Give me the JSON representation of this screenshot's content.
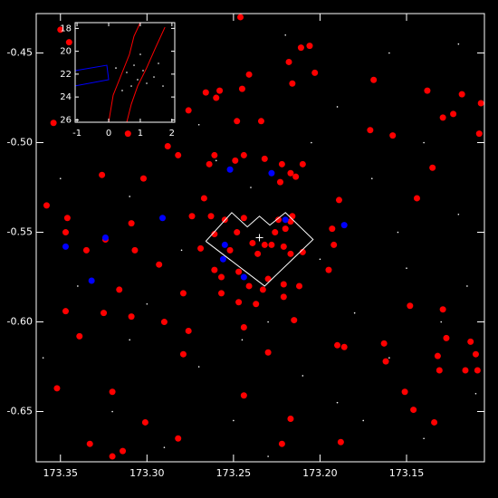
{
  "chart_data": [
    {
      "type": "scatter",
      "xlim": [
        173.364,
        173.105
      ],
      "ylim": [
        -0.678,
        -0.428
      ],
      "xticks": [
        173.35,
        {
          "value": 173.3,
          "label": "173.30"
        },
        173.25,
        {
          "value": 173.2,
          "label": "173.20"
        },
        173.15
      ],
      "yticks": [
        -0.45,
        {
          "value": -0.5,
          "label": "-0.50"
        },
        -0.55,
        {
          "value": -0.6,
          "label": "-0.60"
        },
        -0.65
      ],
      "grid": false,
      "series": [
        {
          "color": "#ffffff",
          "marker": "point",
          "x": [
            173.33,
            173.29,
            173.22,
            173.16,
            173.12,
            173.27,
            173.19,
            173.14,
            173.35,
            173.31,
            173.24,
            173.17,
            173.12,
            173.28,
            173.2,
            173.15,
            173.34,
            173.3,
            173.23,
            173.18,
            173.13,
            173.36,
            173.27,
            173.21,
            173.16,
            173.11,
            173.32,
            173.25,
            173.19,
            173.14,
            173.29,
            173.23,
            173.34,
            173.26,
            173.205,
            173.155,
            173.31,
            173.245,
            173.175,
            173.115
          ],
          "values": [
            -0.44,
            -0.46,
            -0.44,
            -0.45,
            -0.445,
            -0.49,
            -0.48,
            -0.5,
            -0.52,
            -0.53,
            -0.525,
            -0.52,
            -0.54,
            -0.56,
            -0.565,
            -0.57,
            -0.58,
            -0.59,
            -0.6,
            -0.595,
            -0.6,
            -0.62,
            -0.625,
            -0.63,
            -0.62,
            -0.64,
            -0.65,
            -0.655,
            -0.645,
            -0.665,
            -0.67,
            -0.675,
            -0.46,
            -0.51,
            -0.5,
            -0.55,
            -0.61,
            -0.61,
            -0.655,
            -0.58
          ]
        },
        {
          "color": "#ff0000",
          "marker": "circle",
          "x": [
            173.246,
            173.211,
            173.206,
            173.218,
            173.203,
            173.241,
            173.266,
            173.258,
            173.26,
            173.245,
            173.216,
            173.169,
            173.138,
            173.118,
            173.107,
            173.276,
            173.129,
            173.123,
            173.108,
            173.171,
            173.158,
            173.248,
            173.234,
            173.311,
            173.288,
            173.282,
            173.302,
            173.326,
            173.264,
            173.261,
            173.244,
            173.232,
            173.249,
            173.222,
            173.21,
            173.217,
            173.135,
            173.223,
            173.214,
            173.144,
            173.267,
            173.189,
            173.358,
            173.346,
            173.309,
            173.274,
            173.263,
            173.255,
            173.244,
            173.224,
            173.216,
            173.226,
            173.248,
            173.22,
            173.217,
            173.261,
            173.347,
            173.324,
            173.193,
            173.192,
            173.307,
            173.335,
            173.269,
            173.239,
            173.232,
            173.228,
            173.221,
            173.252,
            173.217,
            173.21,
            173.236,
            173.293,
            173.195,
            173.261,
            173.247,
            173.23,
            173.221,
            173.212,
            173.257,
            173.233,
            173.257,
            173.279,
            173.241,
            173.316,
            173.237,
            173.221,
            173.247,
            173.347,
            173.325,
            173.309,
            173.148,
            173.129,
            173.29,
            173.215,
            173.244,
            173.339,
            173.276,
            173.127,
            173.113,
            173.19,
            173.186,
            173.23,
            173.163,
            173.279,
            173.132,
            173.11,
            173.162,
            173.116,
            173.131,
            173.109,
            173.352,
            173.244,
            173.32,
            173.151,
            173.146,
            173.217,
            173.301,
            173.134,
            173.188,
            173.282,
            173.333,
            173.222,
            173.314,
            173.32,
            173.35,
            173.354,
            173.345
          ],
          "values": [
            -0.43,
            -0.447,
            -0.446,
            -0.455,
            -0.461,
            -0.462,
            -0.472,
            -0.471,
            -0.475,
            -0.47,
            -0.467,
            -0.465,
            -0.471,
            -0.473,
            -0.478,
            -0.482,
            -0.486,
            -0.484,
            -0.495,
            -0.493,
            -0.496,
            -0.488,
            -0.488,
            -0.495,
            -0.502,
            -0.507,
            -0.52,
            -0.518,
            -0.512,
            -0.507,
            -0.507,
            -0.509,
            -0.51,
            -0.512,
            -0.512,
            -0.517,
            -0.514,
            -0.522,
            -0.519,
            -0.531,
            -0.531,
            -0.532,
            -0.535,
            -0.542,
            -0.545,
            -0.541,
            -0.541,
            -0.543,
            -0.542,
            -0.543,
            -0.541,
            -0.55,
            -0.55,
            -0.548,
            -0.544,
            -0.551,
            -0.55,
            -0.554,
            -0.548,
            -0.557,
            -0.56,
            -0.56,
            -0.559,
            -0.556,
            -0.557,
            -0.557,
            -0.558,
            -0.56,
            -0.562,
            -0.561,
            -0.562,
            -0.568,
            -0.571,
            -0.571,
            -0.572,
            -0.576,
            -0.579,
            -0.58,
            -0.575,
            -0.582,
            -0.584,
            -0.584,
            -0.58,
            -0.582,
            -0.59,
            -0.586,
            -0.589,
            -0.594,
            -0.595,
            -0.597,
            -0.591,
            -0.593,
            -0.6,
            -0.599,
            -0.603,
            -0.608,
            -0.605,
            -0.609,
            -0.611,
            -0.613,
            -0.614,
            -0.617,
            -0.612,
            -0.618,
            -0.619,
            -0.618,
            -0.622,
            -0.627,
            -0.627,
            -0.627,
            -0.637,
            -0.641,
            -0.639,
            -0.639,
            -0.649,
            -0.654,
            -0.656,
            -0.656,
            -0.667,
            -0.665,
            -0.668,
            -0.668,
            -0.672,
            -0.675,
            -0.437,
            -0.489,
            -0.444
          ]
        },
        {
          "color": "#0000ff",
          "marker": "circle",
          "x": [
            173.252,
            173.228,
            173.291,
            173.22,
            173.186,
            173.324,
            173.347,
            173.255,
            173.256,
            173.332,
            173.244
          ],
          "values": [
            -0.515,
            -0.517,
            -0.542,
            -0.543,
            -0.546,
            -0.553,
            -0.558,
            -0.557,
            -0.565,
            -0.577,
            -0.575
          ]
        },
        {
          "color": "#ffffff",
          "marker": "none",
          "line": true,
          "x": [
            173.266,
            173.251,
            173.242,
            173.235,
            173.229,
            173.22,
            173.204,
            173.232,
            173.266
          ],
          "values": [
            -0.555,
            -0.539,
            -0.547,
            -0.541,
            -0.546,
            -0.539,
            -0.554,
            -0.58,
            -0.555
          ]
        },
        {
          "color": "#ffffff",
          "marker": "plus",
          "x": [
            173.235
          ],
          "values": [
            -0.553
          ]
        }
      ]
    },
    {
      "type": "scatter",
      "xlim": [
        -1.06,
        2.09
      ],
      "ylim": [
        26.2,
        17.5
      ],
      "xticks": [
        -1,
        0,
        1,
        2
      ],
      "yticks": [
        18,
        20,
        22,
        24,
        26
      ],
      "grid": false,
      "series": [
        {
          "color": "#ffffff",
          "marker": "point",
          "x": [
            0.572,
            0.802,
            0.916,
            1.088,
            0.716,
            1.203,
            0.429,
            1.432,
            1.575,
            1.718,
            0.229,
            1.002
          ],
          "values": [
            21.85,
            21.22,
            22.48,
            21.69,
            23.04,
            22.8,
            23.43,
            22.25,
            21.06,
            23.04,
            21.46,
            20.27
          ]
        },
        {
          "color": "#ff0000",
          "marker": "none",
          "line": true,
          "x": [
            0.0,
            0.143,
            0.429,
            0.658,
            0.8,
            1.0
          ],
          "values": [
            26.2,
            23.83,
            21.85,
            20.27,
            18.69,
            17.5
          ]
        },
        {
          "color": "#ff0000",
          "marker": "none",
          "line": true,
          "x": [
            0.572,
            0.716,
            0.916,
            1.2,
            1.49,
            1.78
          ],
          "values": [
            26.2,
            24.62,
            23.04,
            21.46,
            19.64,
            17.9
          ]
        },
        {
          "color": "#0000ff",
          "marker": "none",
          "line": true,
          "x": [
            -1.06,
            -0.058,
            0.0,
            -1.06,
            -1.06
          ],
          "values": [
            21.69,
            21.22,
            22.48,
            23.03,
            21.69
          ]
        }
      ]
    }
  ]
}
